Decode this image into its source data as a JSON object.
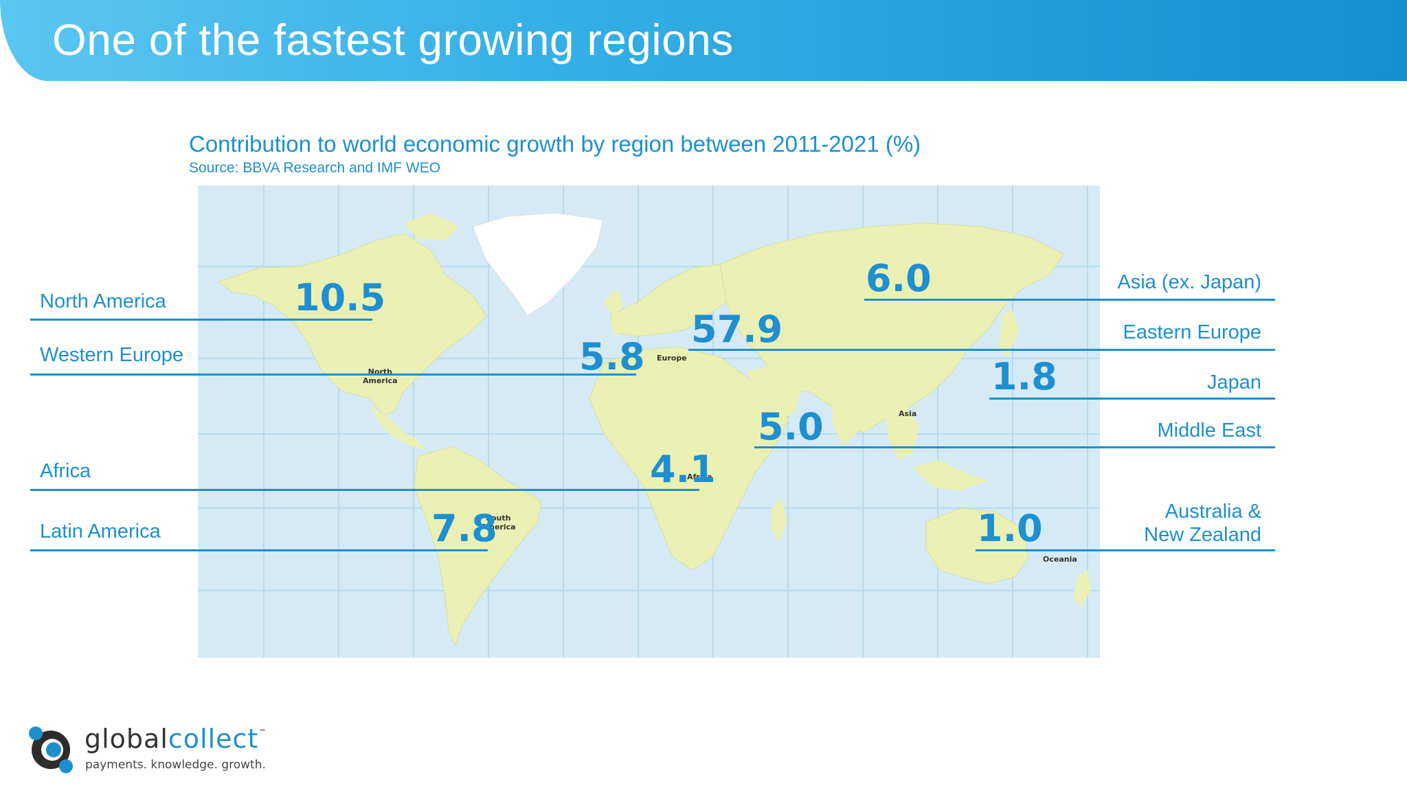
{
  "title": "One of the fastest growing regions",
  "chart": {
    "subtitle": "Contribution to world economic growth by region between 2011-2021 (%)",
    "source": "Source: BBVA Research and IMF WEO"
  },
  "map_labels": {
    "north_america": "North\nAmerica",
    "europe": "Europe",
    "asia": "Asia",
    "africa": "Africa",
    "south_america": "South\nAmerica",
    "oceania": "Oceania"
  },
  "regions": [
    {
      "name": "North America",
      "value": "10.5"
    },
    {
      "name": "Western Europe",
      "value": "5.8"
    },
    {
      "name": "Africa",
      "value": "4.1"
    },
    {
      "name": "Latin America",
      "value": "7.8"
    },
    {
      "name": "Asia (ex. Japan)",
      "value": "6.0"
    },
    {
      "name": "Eastern Europe",
      "value": "57.9"
    },
    {
      "name": "Japan",
      "value": "1.8"
    },
    {
      "name": "Middle East",
      "value": "5.0"
    },
    {
      "name": "Australia &\nNew Zealand",
      "value": "1.0"
    }
  ],
  "logo": {
    "name_part1": "global",
    "name_part2": "collect",
    "tm": "™",
    "tagline": "payments. knowledge. growth."
  },
  "colors": {
    "accent": "#1d8fcf",
    "ocean": "#d5eaf5",
    "land": "#eaf0b4",
    "greenland": "#ffffff"
  }
}
